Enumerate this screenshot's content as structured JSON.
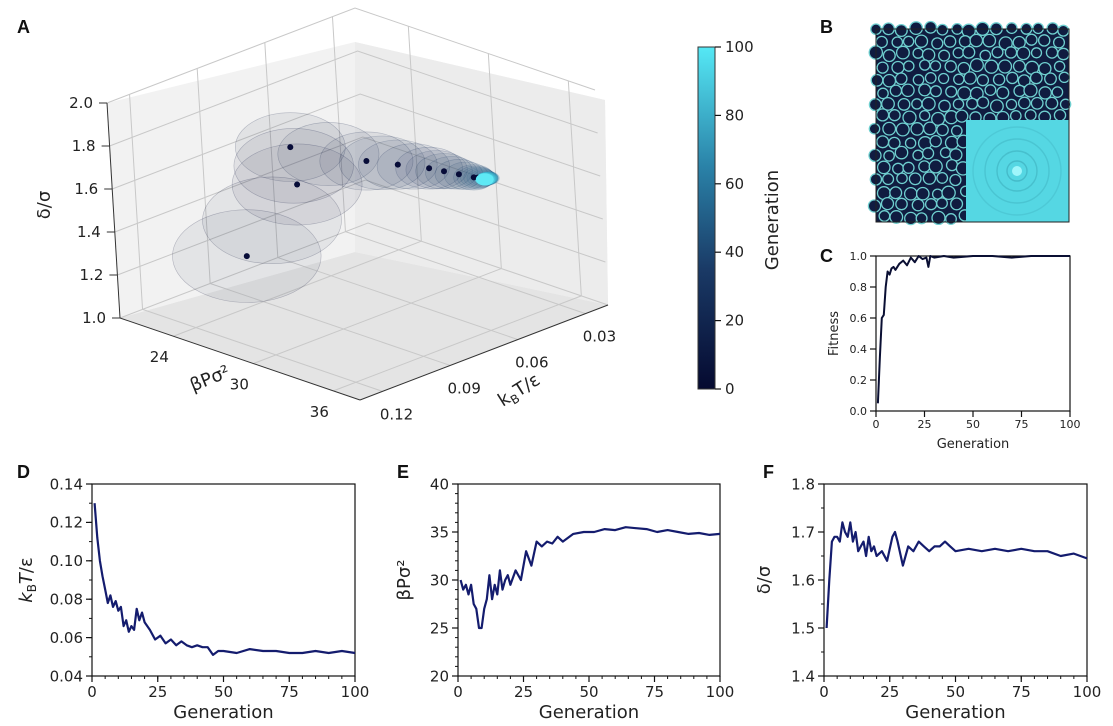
{
  "panels": {
    "A": "A",
    "B": "B",
    "C": "C",
    "D": "D",
    "E": "E",
    "F": "F"
  },
  "colors": {
    "line": "#141c6e",
    "line_dark": "#0a0f33",
    "cmap_low": "#050a30",
    "cmap_mid": "#1f5d8a",
    "cmap_high": "#55e8f5",
    "pattern_bg": "#101c40",
    "pattern_wall": "#6fcfcf",
    "fft_bg": "#55d7e3"
  },
  "colorbar": {
    "label": "Generation",
    "range": [
      0,
      100
    ],
    "ticks": [
      "0",
      "20",
      "40",
      "60",
      "80",
      "100"
    ]
  },
  "chart_data": [
    {
      "panel": "A",
      "type": "scatter",
      "title": "",
      "xlabel": "kBT/ε",
      "ylabel": "βPσ²",
      "zlabel": "δ/σ",
      "x_ticks": [
        "0.03",
        "0.06",
        "0.09",
        "0.12"
      ],
      "y_ticks": [
        "24",
        "30",
        "36"
      ],
      "z_ticks": [
        "1.0",
        "1.2",
        "1.4",
        "1.6",
        "1.8",
        "2.0"
      ],
      "note_3d": "trajectory of means with translucent uncertainty ellipsoids, colored by generation",
      "points": [
        {
          "generation": 1,
          "kT": 0.13,
          "P": 30.0,
          "delta": 1.5
        },
        {
          "generation": 5,
          "kT": 0.095,
          "P": 28.0,
          "delta": 1.65
        },
        {
          "generation": 10,
          "kT": 0.08,
          "P": 25.0,
          "delta": 1.7
        },
        {
          "generation": 15,
          "kT": 0.07,
          "P": 29.0,
          "delta": 1.68
        },
        {
          "generation": 25,
          "kT": 0.06,
          "P": 32.0,
          "delta": 1.67
        },
        {
          "generation": 40,
          "kT": 0.055,
          "P": 34.5,
          "delta": 1.66
        },
        {
          "generation": 60,
          "kT": 0.053,
          "P": 35.3,
          "delta": 1.665
        },
        {
          "generation": 80,
          "kT": 0.052,
          "P": 35.0,
          "delta": 1.655
        },
        {
          "generation": 100,
          "kT": 0.052,
          "P": 34.8,
          "delta": 1.645
        }
      ]
    },
    {
      "panel": "C",
      "type": "line",
      "xlabel": "Generation",
      "ylabel": "Fitness",
      "xlim": [
        0,
        100
      ],
      "ylim": [
        0.0,
        1.0
      ],
      "x_ticks": [
        "0",
        "25",
        "50",
        "75",
        "100"
      ],
      "y_ticks": [
        "0.0",
        "0.2",
        "0.4",
        "0.6",
        "0.8",
        "1.0"
      ],
      "x": [
        1,
        2,
        3,
        4,
        5,
        6,
        7,
        8,
        9,
        10,
        12,
        14,
        16,
        18,
        20,
        22,
        24,
        26,
        27,
        28,
        30,
        35,
        40,
        50,
        60,
        70,
        80,
        90,
        100
      ],
      "y": [
        0.05,
        0.35,
        0.6,
        0.62,
        0.8,
        0.9,
        0.88,
        0.92,
        0.93,
        0.91,
        0.95,
        0.97,
        0.94,
        0.99,
        0.96,
        1.0,
        0.98,
        0.99,
        0.93,
        1.0,
        0.99,
        1.0,
        0.99,
        1.0,
        1.0,
        0.99,
        1.0,
        1.0,
        1.0
      ]
    },
    {
      "panel": "D",
      "type": "line",
      "xlabel": "Generation",
      "ylabel": "kBT/ε",
      "xlim": [
        0,
        100
      ],
      "ylim": [
        0.04,
        0.14
      ],
      "x_ticks": [
        "0",
        "25",
        "50",
        "75",
        "100"
      ],
      "y_ticks": [
        "0.04",
        "0.06",
        "0.08",
        "0.10",
        "0.12",
        "0.14"
      ],
      "x": [
        1,
        2,
        3,
        4,
        5,
        6,
        7,
        8,
        9,
        10,
        11,
        12,
        13,
        14,
        15,
        16,
        17,
        18,
        19,
        20,
        22,
        24,
        26,
        28,
        30,
        32,
        34,
        36,
        38,
        40,
        42,
        44,
        46,
        48,
        50,
        55,
        60,
        65,
        70,
        75,
        80,
        85,
        90,
        95,
        100
      ],
      "y": [
        0.13,
        0.112,
        0.1,
        0.092,
        0.085,
        0.078,
        0.082,
        0.076,
        0.079,
        0.074,
        0.076,
        0.066,
        0.069,
        0.063,
        0.066,
        0.064,
        0.075,
        0.069,
        0.073,
        0.068,
        0.064,
        0.059,
        0.061,
        0.057,
        0.059,
        0.056,
        0.058,
        0.056,
        0.055,
        0.056,
        0.055,
        0.055,
        0.051,
        0.053,
        0.053,
        0.052,
        0.054,
        0.053,
        0.053,
        0.052,
        0.052,
        0.053,
        0.052,
        0.053,
        0.052
      ]
    },
    {
      "panel": "E",
      "type": "line",
      "xlabel": "Generation",
      "ylabel": "βPσ²",
      "xlim": [
        0,
        100
      ],
      "ylim": [
        20,
        40
      ],
      "x_ticks": [
        "0",
        "25",
        "50",
        "75",
        "100"
      ],
      "y_ticks": [
        "20",
        "25",
        "30",
        "35",
        "40"
      ],
      "x": [
        1,
        2,
        3,
        4,
        5,
        6,
        7,
        8,
        9,
        10,
        11,
        12,
        13,
        14,
        15,
        16,
        17,
        18,
        19,
        20,
        22,
        24,
        26,
        28,
        30,
        32,
        34,
        36,
        38,
        40,
        44,
        48,
        52,
        56,
        60,
        64,
        68,
        72,
        76,
        80,
        84,
        88,
        92,
        96,
        100
      ],
      "y": [
        30.0,
        29.0,
        29.5,
        28.5,
        29.5,
        27.5,
        27.0,
        25.0,
        25.0,
        27.0,
        28.0,
        30.5,
        28.0,
        29.5,
        28.5,
        31.0,
        29.0,
        30.0,
        30.5,
        29.5,
        31.0,
        30.0,
        33.0,
        31.5,
        34.0,
        33.5,
        34.0,
        33.8,
        34.5,
        34.0,
        34.8,
        35.0,
        35.0,
        35.3,
        35.2,
        35.5,
        35.4,
        35.3,
        35.0,
        35.2,
        35.0,
        34.8,
        34.9,
        34.7,
        34.8
      ]
    },
    {
      "panel": "F",
      "type": "line",
      "xlabel": "Generation",
      "ylabel": "δ/σ",
      "xlim": [
        0,
        100
      ],
      "ylim": [
        1.4,
        1.8
      ],
      "x_ticks": [
        "0",
        "25",
        "50",
        "75",
        "100"
      ],
      "y_ticks": [
        "1.4",
        "1.5",
        "1.6",
        "1.7",
        "1.8"
      ],
      "x": [
        1,
        2,
        3,
        4,
        5,
        6,
        7,
        8,
        9,
        10,
        11,
        12,
        13,
        14,
        15,
        16,
        17,
        18,
        19,
        20,
        22,
        24,
        26,
        27,
        28,
        30,
        32,
        34,
        36,
        38,
        40,
        42,
        44,
        46,
        48,
        50,
        55,
        60,
        65,
        70,
        75,
        80,
        85,
        90,
        95,
        100
      ],
      "y": [
        1.5,
        1.6,
        1.68,
        1.69,
        1.69,
        1.68,
        1.72,
        1.7,
        1.69,
        1.72,
        1.68,
        1.7,
        1.66,
        1.67,
        1.68,
        1.65,
        1.69,
        1.66,
        1.67,
        1.65,
        1.66,
        1.64,
        1.69,
        1.7,
        1.68,
        1.63,
        1.67,
        1.66,
        1.68,
        1.67,
        1.66,
        1.67,
        1.67,
        1.68,
        1.67,
        1.66,
        1.665,
        1.66,
        1.665,
        1.66,
        1.665,
        1.66,
        1.66,
        1.65,
        1.655,
        1.645
      ]
    }
  ]
}
